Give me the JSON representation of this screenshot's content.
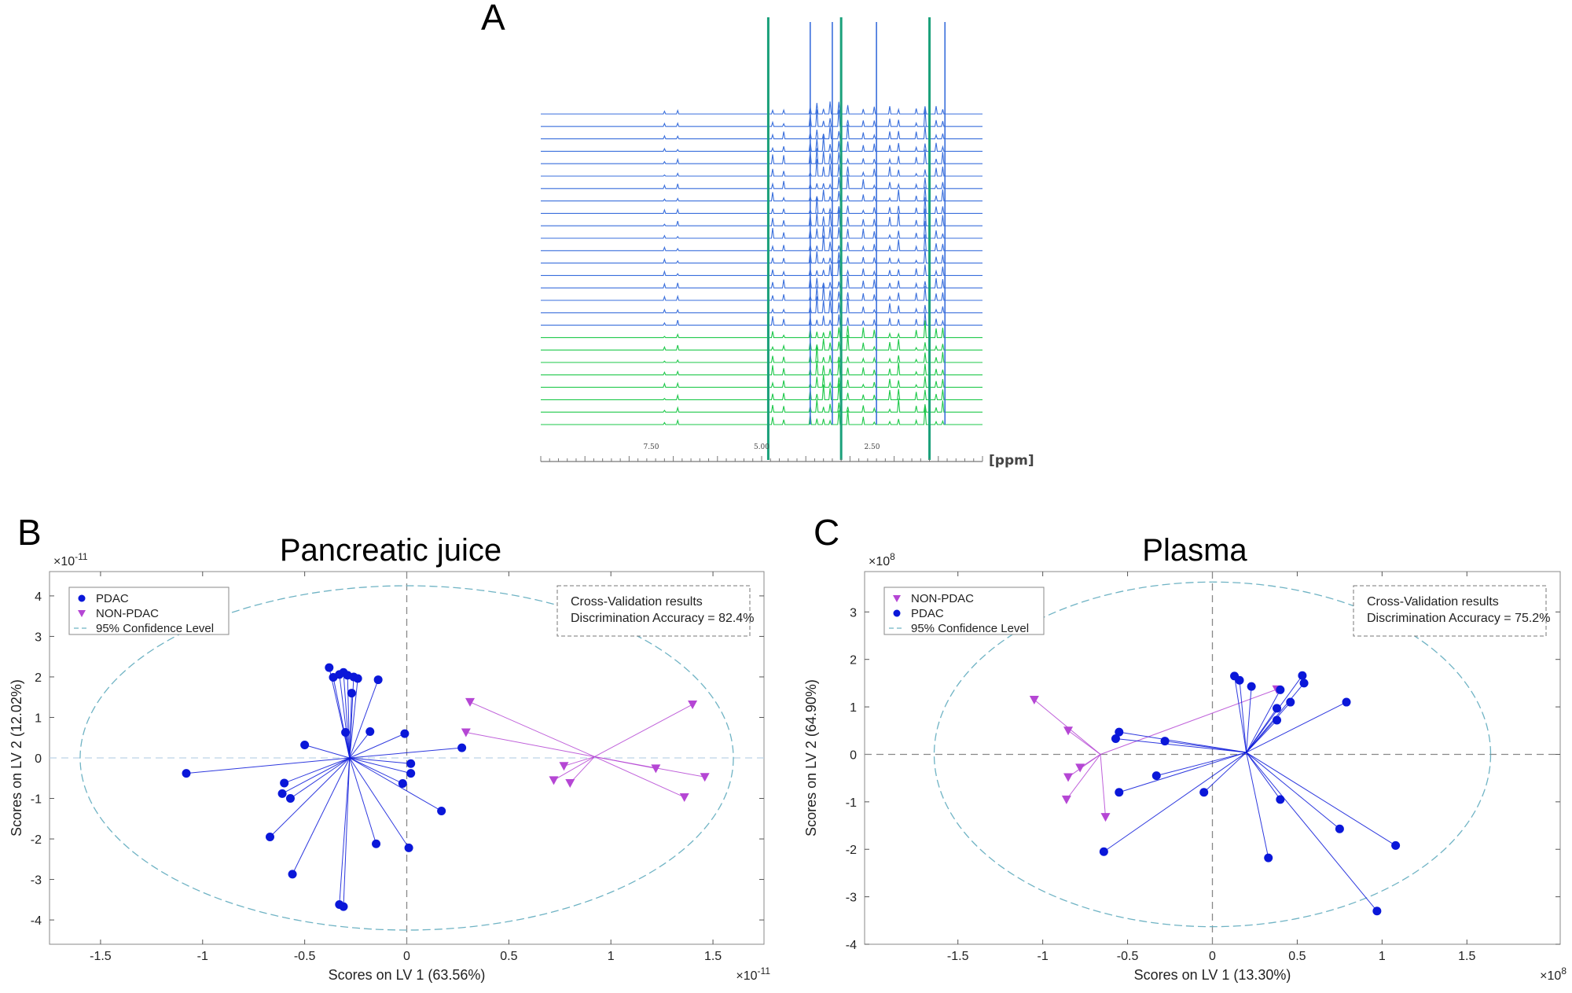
{
  "panel_labels": {
    "a": "A",
    "b": "B",
    "c": "C"
  },
  "colors": {
    "pdac": "#0a17d9",
    "non_pdac": "#b546d4",
    "confidence": "#6fb3c4",
    "nmr_blue": "#3a6fdc",
    "nmr_green": "#1ec84a"
  },
  "nmr": {
    "unit_label": "[ppm]",
    "tick_labels": [
      "7.50",
      "5.00",
      "2.50"
    ],
    "ppm_range": [
      10.0,
      0.0
    ],
    "n_blue_spectra": 18,
    "n_green_spectra": 8
  },
  "chart_data": [
    {
      "type": "scatter",
      "title": "Pancreatic juice",
      "xlabel": "Scores on LV 1 (63.56%)",
      "ylabel": "Scores on LV 2 (12.02%)",
      "x_exponent": "×10",
      "x_exponent_power": "-11",
      "y_exponent": "×10",
      "y_exponent_power": "-11",
      "xlim": [
        -1.75,
        1.75
      ],
      "ylim": [
        -4.6,
        4.6
      ],
      "xticks": [
        -1.5,
        -1,
        -0.5,
        0,
        0.5,
        1,
        1.5
      ],
      "xtick_labels": [
        "-1.5",
        "-1",
        "-0.5",
        "0",
        "0.5",
        "1",
        "1.5"
      ],
      "yticks": [
        -4,
        -3,
        -2,
        -1,
        0,
        1,
        2,
        3,
        4
      ],
      "ytick_labels": [
        "-4",
        "-3",
        "-2",
        "-1",
        "0",
        "1",
        "2",
        "3",
        "4"
      ],
      "legend": {
        "position": "top-left",
        "entries": [
          "PDAC",
          "NON-PDAC",
          "95% Confidence Level"
        ],
        "series_keys": [
          "pdac",
          "non_pdac",
          "confidence"
        ]
      },
      "annotation": {
        "position": "top-right",
        "line1": "Cross-Validation results",
        "line2": "Discrimination Accuracy = 82.4%"
      },
      "ellipse": {
        "cx": 0,
        "cy": 0,
        "rx": 1.6,
        "ry": 4.25
      },
      "series": [
        {
          "key": "pdac",
          "name": "PDAC",
          "marker": "circle",
          "centroid": [
            -0.28,
            0.0
          ],
          "points": [
            [
              -1.08,
              -0.38
            ],
            [
              -0.5,
              0.32
            ],
            [
              -0.6,
              -0.62
            ],
            [
              -0.61,
              -0.88
            ],
            [
              -0.57,
              -1.0
            ],
            [
              -0.67,
              -1.95
            ],
            [
              -0.56,
              -2.87
            ],
            [
              -0.33,
              -3.62
            ],
            [
              -0.31,
              -3.67
            ],
            [
              -0.15,
              -2.12
            ],
            [
              -0.38,
              2.23
            ],
            [
              -0.36,
              1.99
            ],
            [
              -0.33,
              2.06
            ],
            [
              -0.31,
              2.11
            ],
            [
              -0.29,
              2.04
            ],
            [
              -0.26,
              2.0
            ],
            [
              -0.24,
              1.96
            ],
            [
              -0.14,
              1.93
            ],
            [
              -0.27,
              1.6
            ],
            [
              -0.3,
              0.63
            ],
            [
              -0.18,
              0.65
            ],
            [
              -0.01,
              0.6
            ],
            [
              -0.02,
              -0.63
            ],
            [
              0.02,
              -0.14
            ],
            [
              0.02,
              -0.38
            ],
            [
              0.01,
              -2.22
            ],
            [
              0.17,
              -1.31
            ],
            [
              0.27,
              0.25
            ]
          ]
        },
        {
          "key": "non_pdac",
          "name": "NON-PDAC",
          "marker": "triangle-down",
          "centroid": [
            0.92,
            0.03
          ],
          "points": [
            [
              0.31,
              1.38
            ],
            [
              0.29,
              0.63
            ],
            [
              0.72,
              -0.55
            ],
            [
              0.77,
              -0.2
            ],
            [
              0.8,
              -0.62
            ],
            [
              1.22,
              -0.26
            ],
            [
              1.36,
              -0.97
            ],
            [
              1.4,
              1.32
            ],
            [
              1.46,
              -0.47
            ]
          ]
        }
      ]
    },
    {
      "type": "scatter",
      "title": "Plasma",
      "xlabel": "Scores on LV 1 (13.30%)",
      "ylabel": "Scores on LV 2 (64.90%)",
      "x_exponent": "×10",
      "x_exponent_power": "8",
      "y_exponent": "×10",
      "y_exponent_power": "8",
      "xlim": [
        -2.05,
        2.05
      ],
      "ylim": [
        -4.0,
        3.85
      ],
      "xticks": [
        -1.5,
        -1,
        -0.5,
        0,
        0.5,
        1,
        1.5
      ],
      "xtick_labels": [
        "-1.5",
        "-1",
        "-0.5",
        "0",
        "0.5",
        "1",
        "1.5"
      ],
      "yticks": [
        -4,
        -3,
        -2,
        -1,
        0,
        1,
        2,
        3
      ],
      "ytick_labels": [
        "-4",
        "-3",
        "-2",
        "-1",
        "0",
        "1",
        "2",
        "3"
      ],
      "legend": {
        "position": "top-left",
        "entries": [
          "NON-PDAC",
          "PDAC",
          "95% Confidence Level"
        ],
        "series_keys": [
          "non_pdac",
          "pdac",
          "confidence"
        ]
      },
      "annotation": {
        "position": "top-right",
        "line1": "Cross-Validation results",
        "line2": "Discrimination Accuracy = 75.2%"
      },
      "ellipse": {
        "cx": 0,
        "cy": 0,
        "rx": 1.64,
        "ry": 3.63
      },
      "series": [
        {
          "key": "non_pdac",
          "name": "NON-PDAC",
          "marker": "triangle-down",
          "centroid": [
            -0.66,
            0.0
          ],
          "points": [
            [
              -1.05,
              1.15
            ],
            [
              -0.85,
              0.5
            ],
            [
              -0.85,
              -0.48
            ],
            [
              -0.78,
              -0.28
            ],
            [
              -0.86,
              -0.95
            ],
            [
              -0.63,
              -1.32
            ],
            [
              0.38,
              1.37
            ]
          ]
        },
        {
          "key": "pdac",
          "name": "PDAC",
          "marker": "circle",
          "centroid": [
            0.2,
            0.04
          ],
          "points": [
            [
              0.13,
              1.65
            ],
            [
              0.16,
              1.56
            ],
            [
              0.23,
              1.43
            ],
            [
              0.4,
              1.36
            ],
            [
              0.46,
              1.1
            ],
            [
              0.53,
              1.66
            ],
            [
              0.54,
              1.5
            ],
            [
              0.38,
              0.97
            ],
            [
              0.38,
              0.72
            ],
            [
              0.79,
              1.1
            ],
            [
              -0.28,
              0.28
            ],
            [
              -0.55,
              0.47
            ],
            [
              -0.57,
              0.33
            ],
            [
              -0.55,
              -0.8
            ],
            [
              -0.33,
              -0.45
            ],
            [
              -0.05,
              -0.8
            ],
            [
              -0.64,
              -2.05
            ],
            [
              0.4,
              -0.95
            ],
            [
              0.33,
              -2.18
            ],
            [
              0.75,
              -1.57
            ],
            [
              0.97,
              -3.3
            ],
            [
              1.08,
              -1.92
            ]
          ]
        }
      ]
    }
  ]
}
